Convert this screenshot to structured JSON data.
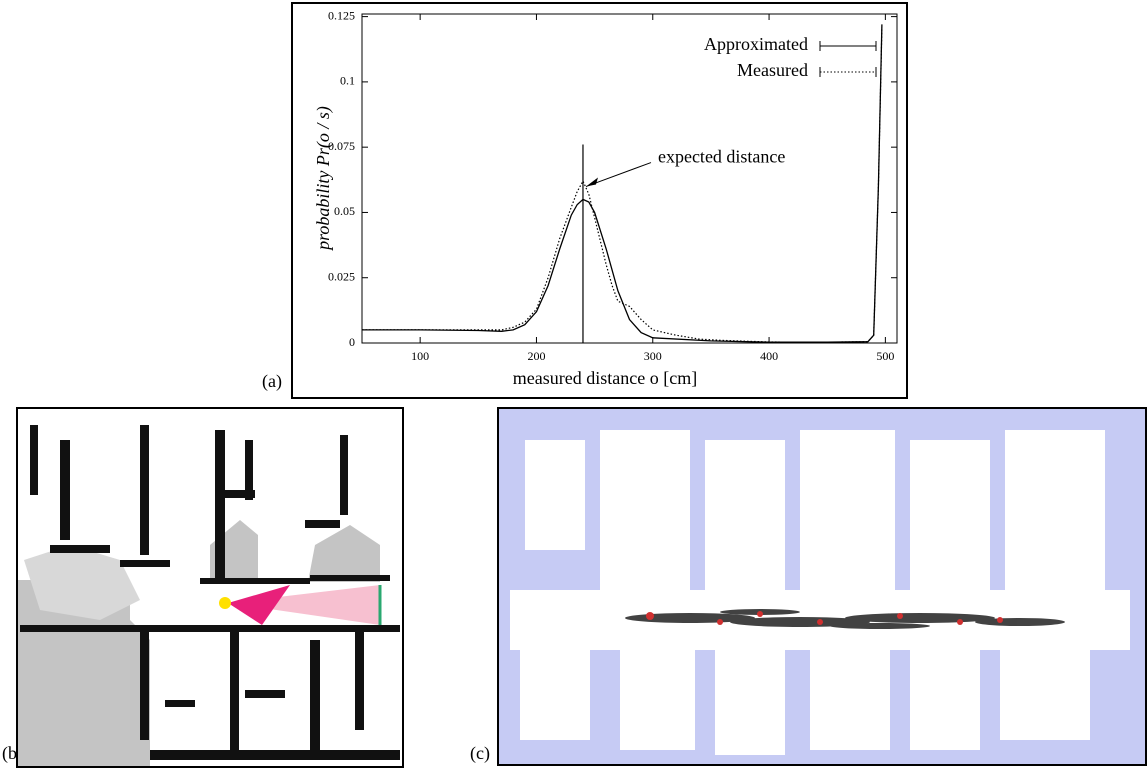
{
  "chart_data": {
    "type": "line",
    "x_label": "measured distance o  [cm]",
    "y_label": "probability  Pr(o / s)",
    "xlim": [
      50,
      510
    ],
    "ylim": [
      0,
      0.126
    ],
    "xticks": [
      100,
      200,
      300,
      400,
      500
    ],
    "yticks": [
      0,
      0.025,
      0.05,
      0.075,
      0.1,
      0.125
    ],
    "legend": "top-right",
    "series": [
      {
        "name": "Approximated",
        "color": "#000000",
        "style": "solid",
        "x": [
          50,
          100,
          150,
          170,
          180,
          190,
          200,
          210,
          220,
          230,
          235,
          240,
          245,
          250,
          260,
          270,
          280,
          290,
          300,
          350,
          400,
          450,
          485,
          490,
          494,
          497
        ],
        "values": [
          0.005,
          0.005,
          0.0048,
          0.0045,
          0.005,
          0.007,
          0.012,
          0.022,
          0.036,
          0.049,
          0.053,
          0.055,
          0.054,
          0.05,
          0.036,
          0.02,
          0.009,
          0.004,
          0.002,
          0.0008,
          0.0003,
          0.0003,
          0.0005,
          0.003,
          0.06,
          0.122
        ]
      },
      {
        "name": "Measured",
        "color": "#000000",
        "style": "dotted",
        "x": [
          50,
          100,
          150,
          170,
          180,
          190,
          200,
          210,
          220,
          230,
          235,
          240,
          245,
          250,
          260,
          265,
          270,
          280,
          290,
          300,
          320,
          340,
          360,
          400,
          450,
          485,
          490,
          494,
          497
        ],
        "values": [
          0.005,
          0.005,
          0.005,
          0.005,
          0.006,
          0.008,
          0.013,
          0.025,
          0.04,
          0.052,
          0.058,
          0.062,
          0.057,
          0.048,
          0.03,
          0.022,
          0.016,
          0.014,
          0.009,
          0.005,
          0.003,
          0.0015,
          0.001,
          0.0004,
          0.0003,
          0.0005,
          0.003,
          0.06,
          0.121
        ]
      }
    ],
    "expected_distance": {
      "label": "expected distance",
      "x": 240,
      "top": 0.076
    }
  },
  "panel_labels": [
    "(a)",
    "(b)",
    "(c)"
  ]
}
